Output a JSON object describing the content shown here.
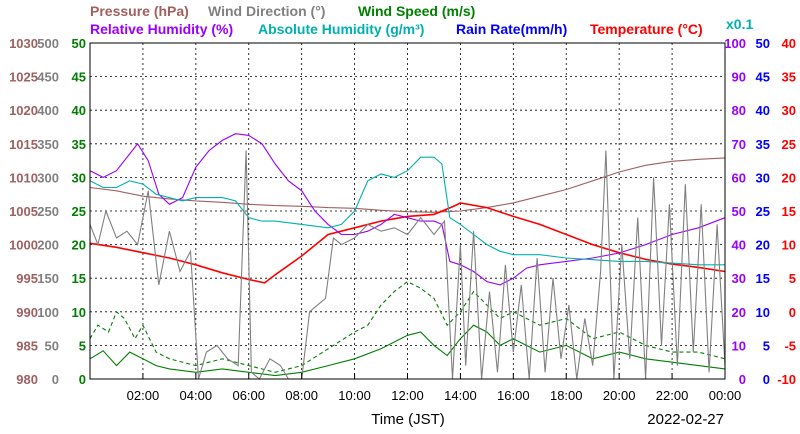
{
  "chart_data": {
    "type": "line",
    "header": {
      "row1": [
        {
          "text": "Pressure (hPa)",
          "color": "#a06060"
        },
        {
          "text": "Wind Direction (°)",
          "color": "#808080"
        },
        {
          "text": "Wind Speed (m/s)",
          "color": "#008000"
        }
      ],
      "row2": [
        {
          "text": "Relative Humidity (%)",
          "color": "#9900ff"
        },
        {
          "text": "Absolute Humidity (g/m³)",
          "color": "#00b0b0"
        },
        {
          "text": "Rain Rate(mm/h)",
          "color": "#0000ff"
        },
        {
          "text": "Temperature (°C)",
          "color": "#ff0000"
        }
      ],
      "x01": "x0.1"
    },
    "xlabel": "Time (JST)",
    "date": "2022-02-27",
    "x_range_hours": [
      0,
      24
    ],
    "x_ticks": [
      "02:00",
      "04:00",
      "06:00",
      "08:00",
      "10:00",
      "12:00",
      "14:00",
      "16:00",
      "18:00",
      "20:00",
      "22:00",
      "00:00"
    ],
    "axes": {
      "pressure": {
        "color": "#a06060",
        "labels": [
          "980",
          "985",
          "990",
          "995",
          "1000",
          "1005",
          "1010",
          "1015",
          "1020",
          "1025",
          "1030"
        ]
      },
      "wind_direction": {
        "color": "#808080",
        "labels": [
          "0",
          "50",
          "100",
          "150",
          "200",
          "250",
          "300",
          "350",
          "400",
          "450",
          "500"
        ]
      },
      "wind_speed": {
        "color": "#008000",
        "labels": [
          "0",
          "5",
          "10",
          "15",
          "20",
          "25",
          "30",
          "35",
          "40",
          "45",
          "50"
        ]
      },
      "humidity": {
        "color": "#9900ff",
        "labels": [
          "0",
          "10",
          "20",
          "30",
          "40",
          "50",
          "60",
          "70",
          "80",
          "90",
          "100"
        ]
      },
      "rain": {
        "color": "#0000ff",
        "labels": [
          "0",
          "5",
          "10",
          "15",
          "20",
          "25",
          "30",
          "35",
          "40",
          "45",
          "50"
        ]
      },
      "temperature": {
        "color": "#ff0000",
        "labels": [
          "-10",
          "-5",
          "0",
          "5",
          "10",
          "15",
          "20",
          "25",
          "30",
          "35",
          "40"
        ]
      }
    },
    "series": [
      {
        "key": "pressure",
        "color": "#a06060",
        "scale": [
          980,
          1030
        ],
        "points": [
          [
            0,
            1008.5
          ],
          [
            1,
            1008
          ],
          [
            2,
            1007.2
          ],
          [
            3,
            1006.8
          ],
          [
            4,
            1006.5
          ],
          [
            5,
            1006.3
          ],
          [
            6,
            1006
          ],
          [
            7,
            1005.8
          ],
          [
            8,
            1005.7
          ],
          [
            9,
            1005.5
          ],
          [
            10,
            1005.4
          ],
          [
            11,
            1005.1
          ],
          [
            12,
            1004.9
          ],
          [
            13,
            1004.8
          ],
          [
            14,
            1005
          ],
          [
            15,
            1005.5
          ],
          [
            16,
            1006.2
          ],
          [
            17,
            1007.2
          ],
          [
            18,
            1008.2
          ],
          [
            19,
            1009.5
          ],
          [
            20,
            1010.8
          ],
          [
            21,
            1011.8
          ],
          [
            22,
            1012.4
          ],
          [
            23,
            1012.7
          ],
          [
            24,
            1012.9
          ]
        ]
      },
      {
        "key": "temperature",
        "color": "#ff0000",
        "scale": [
          -10,
          40
        ],
        "points": [
          [
            0,
            10.2
          ],
          [
            1,
            9.6
          ],
          [
            2,
            8.8
          ],
          [
            3,
            8
          ],
          [
            4,
            7
          ],
          [
            5,
            5.8
          ],
          [
            6,
            4.8
          ],
          [
            6.6,
            4.3
          ],
          [
            7,
            5.5
          ],
          [
            8,
            8.3
          ],
          [
            9,
            11.5
          ],
          [
            10,
            12.5
          ],
          [
            11,
            13.5
          ],
          [
            12,
            14.2
          ],
          [
            13,
            14.5
          ],
          [
            13.8,
            15.8
          ],
          [
            14,
            16.2
          ],
          [
            15,
            15.5
          ],
          [
            16,
            14.2
          ],
          [
            17,
            13
          ],
          [
            18,
            11.5
          ],
          [
            19,
            10
          ],
          [
            20,
            8.8
          ],
          [
            21,
            7.8
          ],
          [
            22,
            7.1
          ],
          [
            23,
            6.6
          ],
          [
            24,
            6
          ]
        ]
      },
      {
        "key": "relative_humidity",
        "color": "#9900ff",
        "scale": [
          0,
          100
        ],
        "points": [
          [
            0,
            62
          ],
          [
            0.5,
            60
          ],
          [
            1,
            62
          ],
          [
            1.8,
            70
          ],
          [
            2.2,
            65
          ],
          [
            2.6,
            55
          ],
          [
            3,
            52
          ],
          [
            3.5,
            54
          ],
          [
            4,
            63
          ],
          [
            4.5,
            68
          ],
          [
            5,
            71
          ],
          [
            5.5,
            73
          ],
          [
            6,
            72.5
          ],
          [
            6.5,
            70
          ],
          [
            7,
            64
          ],
          [
            7.5,
            59
          ],
          [
            8,
            56
          ],
          [
            8.5,
            50
          ],
          [
            9,
            46
          ],
          [
            9.5,
            43
          ],
          [
            10,
            43
          ],
          [
            10.5,
            44
          ],
          [
            11,
            46
          ],
          [
            11.5,
            49
          ],
          [
            12,
            48
          ],
          [
            12.5,
            47
          ],
          [
            13,
            47
          ],
          [
            13.3,
            46
          ],
          [
            13.6,
            35
          ],
          [
            14,
            34
          ],
          [
            14.5,
            32
          ],
          [
            15,
            29
          ],
          [
            15.5,
            28
          ],
          [
            16,
            30
          ],
          [
            16.5,
            33
          ],
          [
            17,
            34
          ],
          [
            17.5,
            34.5
          ],
          [
            18,
            35
          ],
          [
            19,
            36
          ],
          [
            20,
            37.5
          ],
          [
            21,
            40
          ],
          [
            22,
            43
          ],
          [
            23,
            45
          ],
          [
            24,
            48
          ]
        ]
      },
      {
        "key": "absolute_humidity",
        "color": "#00b0b0",
        "scale": [
          0,
          100
        ],
        "points": [
          [
            0,
            59
          ],
          [
            0.5,
            57
          ],
          [
            1,
            57
          ],
          [
            1.5,
            59
          ],
          [
            2,
            58
          ],
          [
            2.5,
            55
          ],
          [
            3,
            54
          ],
          [
            3.5,
            53
          ],
          [
            4,
            54
          ],
          [
            4.5,
            54
          ],
          [
            5,
            54
          ],
          [
            5.5,
            53
          ],
          [
            6,
            48
          ],
          [
            6.5,
            47
          ],
          [
            7,
            47
          ],
          [
            8,
            46
          ],
          [
            9,
            45
          ],
          [
            9.5,
            46
          ],
          [
            10,
            50
          ],
          [
            10.5,
            59
          ],
          [
            11,
            61
          ],
          [
            11.5,
            60
          ],
          [
            12,
            62
          ],
          [
            12.5,
            66
          ],
          [
            13,
            66
          ],
          [
            13.3,
            64
          ],
          [
            13.6,
            48
          ],
          [
            14,
            46
          ],
          [
            14.5,
            43
          ],
          [
            15,
            40
          ],
          [
            15.5,
            38
          ],
          [
            16,
            37
          ],
          [
            16.5,
            37
          ],
          [
            17,
            37
          ],
          [
            18,
            36
          ],
          [
            19,
            35.5
          ],
          [
            20,
            35
          ],
          [
            21,
            35
          ],
          [
            22,
            34.5
          ],
          [
            23,
            34
          ],
          [
            24,
            34
          ]
        ]
      },
      {
        "key": "wind_speed_avg",
        "color": "#008000",
        "scale": [
          0,
          50
        ],
        "dash": "",
        "points": [
          [
            0,
            3
          ],
          [
            0.5,
            4.2
          ],
          [
            1,
            2
          ],
          [
            1.5,
            4
          ],
          [
            2,
            3
          ],
          [
            2.5,
            2
          ],
          [
            3,
            1.5
          ],
          [
            4,
            1
          ],
          [
            5,
            1.5
          ],
          [
            6,
            1
          ],
          [
            7,
            0.5
          ],
          [
            8,
            1
          ],
          [
            9,
            2
          ],
          [
            10,
            3
          ],
          [
            11,
            4.5
          ],
          [
            12,
            6.5
          ],
          [
            12.5,
            7
          ],
          [
            13,
            5
          ],
          [
            13.5,
            3.5
          ],
          [
            14,
            6
          ],
          [
            14.5,
            8
          ],
          [
            15,
            7
          ],
          [
            15.5,
            5
          ],
          [
            16,
            6
          ],
          [
            17,
            4
          ],
          [
            18,
            5
          ],
          [
            19,
            3
          ],
          [
            20,
            4
          ],
          [
            21,
            3
          ],
          [
            22,
            2.5
          ],
          [
            23,
            2
          ],
          [
            24,
            1.5
          ]
        ]
      },
      {
        "key": "wind_speed_gust",
        "color": "#008000",
        "scale": [
          0,
          50
        ],
        "dash": "4,3",
        "points": [
          [
            0,
            6
          ],
          [
            0.3,
            8
          ],
          [
            0.7,
            7
          ],
          [
            1,
            10
          ],
          [
            1.3,
            9
          ],
          [
            1.7,
            6
          ],
          [
            2,
            8
          ],
          [
            2.5,
            4
          ],
          [
            3,
            3
          ],
          [
            4,
            2
          ],
          [
            5,
            3
          ],
          [
            6,
            2
          ],
          [
            7,
            1
          ],
          [
            8,
            2
          ],
          [
            9,
            4.5
          ],
          [
            10,
            7
          ],
          [
            10.5,
            8
          ],
          [
            11,
            11
          ],
          [
            11.5,
            13
          ],
          [
            12,
            14.5
          ],
          [
            12.5,
            13.5
          ],
          [
            13,
            12
          ],
          [
            13.5,
            8
          ],
          [
            14,
            10
          ],
          [
            14.5,
            13
          ],
          [
            15,
            11
          ],
          [
            15.5,
            9
          ],
          [
            16,
            10
          ],
          [
            17,
            8
          ],
          [
            18,
            9
          ],
          [
            19,
            6
          ],
          [
            20,
            7
          ],
          [
            21,
            5
          ],
          [
            22,
            4
          ],
          [
            23,
            4
          ],
          [
            24,
            3
          ]
        ]
      },
      {
        "key": "wind_direction",
        "color": "#808080",
        "scale": [
          0,
          500
        ],
        "points": [
          [
            0,
            230
          ],
          [
            0.3,
            200
          ],
          [
            0.6,
            250
          ],
          [
            1,
            210
          ],
          [
            1.4,
            220
          ],
          [
            1.8,
            200
          ],
          [
            2.2,
            280
          ],
          [
            2.6,
            140
          ],
          [
            3,
            220
          ],
          [
            3.4,
            160
          ],
          [
            3.8,
            190
          ],
          [
            4.1,
            0
          ],
          [
            4.4,
            40
          ],
          [
            4.8,
            50
          ],
          [
            5.2,
            30
          ],
          [
            5.6,
            20
          ],
          [
            5.9,
            340
          ],
          [
            6.1,
            10
          ],
          [
            6.4,
            0
          ],
          [
            6.8,
            30
          ],
          [
            7.2,
            20
          ],
          [
            7.5,
            0
          ],
          [
            8,
            0
          ],
          [
            8.3,
            100
          ],
          [
            8.6,
            110
          ],
          [
            8.9,
            120
          ],
          [
            9.2,
            210
          ],
          [
            9.5,
            200
          ],
          [
            10,
            210
          ],
          [
            10.5,
            230
          ],
          [
            11,
            220
          ],
          [
            11.5,
            225
          ],
          [
            12,
            215
          ],
          [
            12.5,
            240
          ],
          [
            13,
            215
          ],
          [
            13.4,
            235
          ],
          [
            13.7,
            0
          ],
          [
            14,
            200
          ],
          [
            14.2,
            20
          ],
          [
            14.5,
            220
          ],
          [
            14.8,
            0
          ],
          [
            15.1,
            130
          ],
          [
            15.4,
            10
          ],
          [
            15.7,
            170
          ],
          [
            16,
            40
          ],
          [
            16.3,
            140
          ],
          [
            16.6,
            0
          ],
          [
            16.9,
            180
          ],
          [
            17.2,
            10
          ],
          [
            17.5,
            150
          ],
          [
            17.8,
            30
          ],
          [
            18.1,
            110
          ],
          [
            18.4,
            0
          ],
          [
            18.7,
            90
          ],
          [
            19,
            20
          ],
          [
            19.3,
            160
          ],
          [
            19.5,
            340
          ],
          [
            19.8,
            0
          ],
          [
            20.1,
            200
          ],
          [
            20.4,
            30
          ],
          [
            20.7,
            240
          ],
          [
            21,
            0
          ],
          [
            21.3,
            300
          ],
          [
            21.6,
            50
          ],
          [
            21.9,
            260
          ],
          [
            22.2,
            20
          ],
          [
            22.5,
            290
          ],
          [
            22.8,
            40
          ],
          [
            23.1,
            260
          ],
          [
            23.4,
            10
          ],
          [
            23.7,
            230
          ],
          [
            24,
            20
          ]
        ]
      }
    ]
  }
}
